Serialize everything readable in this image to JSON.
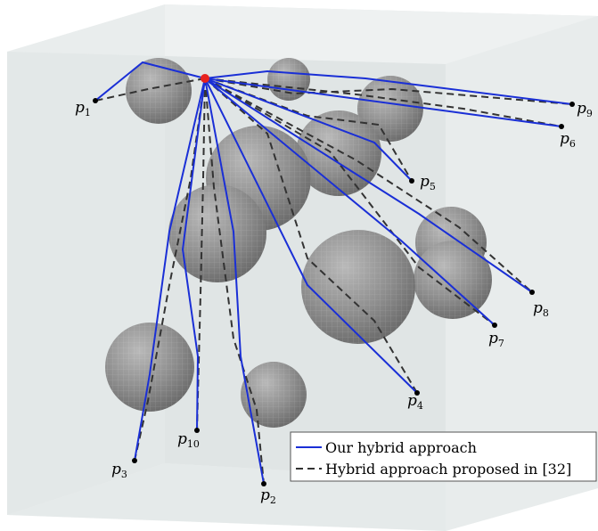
{
  "legend": {
    "ours_label": "Our hybrid approach",
    "baseline_label": "Hybrid approach proposed in [32]"
  },
  "colors": {
    "ours": "#1a2fd6",
    "baseline": "#333333",
    "start": "#e8231e",
    "sphere": "#8f8f8f",
    "box_face": "#e7ebeb"
  },
  "points": [
    {
      "id": "p1",
      "base": "p",
      "sub": "1"
    },
    {
      "id": "p2",
      "base": "p",
      "sub": "2"
    },
    {
      "id": "p3",
      "base": "p",
      "sub": "3"
    },
    {
      "id": "p4",
      "base": "p",
      "sub": "4"
    },
    {
      "id": "p5",
      "base": "p",
      "sub": "5"
    },
    {
      "id": "p6",
      "base": "p",
      "sub": "6"
    },
    {
      "id": "p7",
      "base": "p",
      "sub": "7"
    },
    {
      "id": "p8",
      "base": "p",
      "sub": "8"
    },
    {
      "id": "p9",
      "base": "p",
      "sub": "9"
    },
    {
      "id": "p10",
      "base": "p",
      "sub": "10"
    }
  ]
}
